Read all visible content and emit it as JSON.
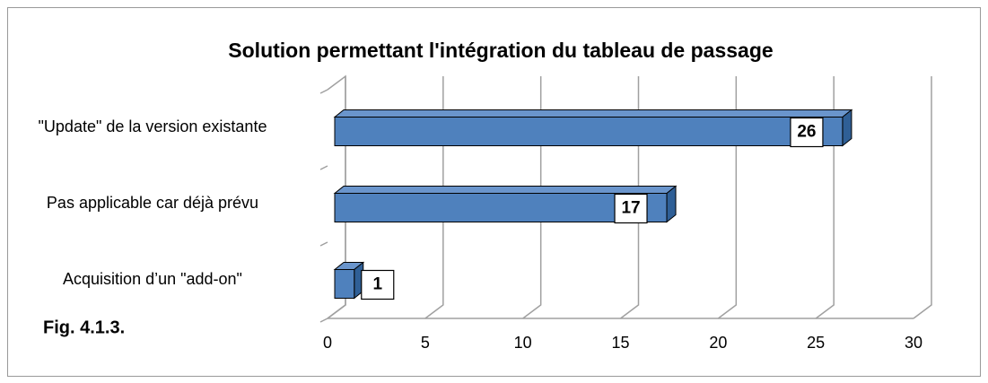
{
  "chart_data": {
    "type": "bar3d",
    "orientation": "horizontal",
    "title": "Solution permettant l'intégration  du tableau de passage",
    "annotation": "Fig. 4.1.3.",
    "categories": [
      "\"Update\" de la version existante",
      "Pas applicable car déjà prévu",
      "Acquisition d’un \"add-on\""
    ],
    "values": [
      26,
      17,
      1
    ],
    "color": "#4f81bd",
    "xlim": [
      0,
      30
    ],
    "xticks": [
      0,
      5,
      10,
      15,
      20,
      25,
      30
    ],
    "grid": true
  }
}
